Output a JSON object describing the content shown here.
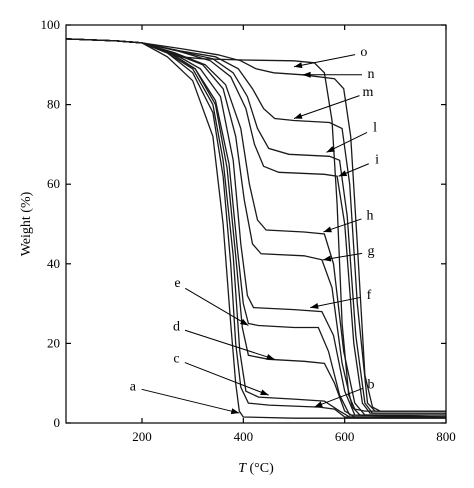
{
  "chart_data": {
    "type": "line",
    "title": "",
    "xlabel_italic": "T",
    "xlabel_rest": " (°C)",
    "ylabel": "Weight (%)",
    "xlim": [
      50,
      800
    ],
    "ylim": [
      0,
      100
    ],
    "xticks": [
      200,
      400,
      600,
      800
    ],
    "yticks": [
      0,
      20,
      40,
      60,
      80,
      100
    ],
    "grid": false,
    "series": [
      {
        "name": "a",
        "label": {
          "text": "a",
          "x": 182,
          "y": 9
        },
        "arrow_to": {
          "x": 392,
          "y": 2.5
        },
        "points": [
          [
            50,
            96.5
          ],
          [
            150,
            96
          ],
          [
            200,
            95.5
          ],
          [
            250,
            92
          ],
          [
            300,
            86
          ],
          [
            340,
            72
          ],
          [
            360,
            50
          ],
          [
            375,
            25
          ],
          [
            385,
            10
          ],
          [
            392,
            3
          ],
          [
            400,
            1.5
          ],
          [
            500,
            1.2
          ],
          [
            800,
            1.2
          ]
        ]
      },
      {
        "name": "b",
        "label": {
          "text": "b",
          "x": 652,
          "y": 9.5
        },
        "arrow_to": {
          "x": 540,
          "y": 4
        },
        "points": [
          [
            50,
            96.5
          ],
          [
            150,
            96
          ],
          [
            200,
            95.5
          ],
          [
            250,
            93
          ],
          [
            300,
            88
          ],
          [
            340,
            78
          ],
          [
            360,
            62
          ],
          [
            375,
            40
          ],
          [
            385,
            20
          ],
          [
            395,
            9
          ],
          [
            410,
            5
          ],
          [
            450,
            4.5
          ],
          [
            550,
            4
          ],
          [
            580,
            3.5
          ],
          [
            600,
            1.5
          ],
          [
            800,
            1.5
          ]
        ]
      },
      {
        "name": "c",
        "label": {
          "text": "c",
          "x": 268,
          "y": 16
        },
        "arrow_to": {
          "x": 450,
          "y": 7
        },
        "points": [
          [
            50,
            96.5
          ],
          [
            150,
            96
          ],
          [
            200,
            95.5
          ],
          [
            250,
            93
          ],
          [
            300,
            89
          ],
          [
            340,
            80
          ],
          [
            360,
            66
          ],
          [
            380,
            42
          ],
          [
            393,
            18
          ],
          [
            405,
            8
          ],
          [
            430,
            6.5
          ],
          [
            500,
            6
          ],
          [
            560,
            5.5
          ],
          [
            590,
            3
          ],
          [
            610,
            1.5
          ],
          [
            800,
            1.5
          ]
        ]
      },
      {
        "name": "d",
        "label": {
          "text": "d",
          "x": 268,
          "y": 24
        },
        "arrow_to": {
          "x": 462,
          "y": 16
        },
        "points": [
          [
            50,
            96.5
          ],
          [
            150,
            96
          ],
          [
            200,
            95.5
          ],
          [
            255,
            93
          ],
          [
            305,
            89
          ],
          [
            345,
            80
          ],
          [
            368,
            64
          ],
          [
            385,
            42
          ],
          [
            398,
            24
          ],
          [
            410,
            17
          ],
          [
            450,
            16
          ],
          [
            520,
            15.5
          ],
          [
            560,
            15
          ],
          [
            580,
            10
          ],
          [
            600,
            3
          ],
          [
            620,
            1.5
          ],
          [
            800,
            1.5
          ]
        ]
      },
      {
        "name": "e",
        "label": {
          "text": "e",
          "x": 270,
          "y": 35
        },
        "arrow_to": {
          "x": 410,
          "y": 24.5
        },
        "points": [
          [
            50,
            96.5
          ],
          [
            150,
            96
          ],
          [
            200,
            95.5
          ],
          [
            255,
            93
          ],
          [
            305,
            89
          ],
          [
            345,
            81
          ],
          [
            372,
            65
          ],
          [
            388,
            44
          ],
          [
            400,
            30
          ],
          [
            410,
            25
          ],
          [
            430,
            24.5
          ],
          [
            500,
            24
          ],
          [
            548,
            24
          ],
          [
            568,
            18
          ],
          [
            590,
            7
          ],
          [
            610,
            2
          ],
          [
            800,
            1.5
          ]
        ]
      },
      {
        "name": "f",
        "label": {
          "text": "f",
          "x": 648,
          "y": 32
        },
        "arrow_to": {
          "x": 532,
          "y": 29
        },
        "points": [
          [
            50,
            96.5
          ],
          [
            150,
            96
          ],
          [
            200,
            95.5
          ],
          [
            260,
            93
          ],
          [
            315,
            89
          ],
          [
            355,
            82
          ],
          [
            380,
            66
          ],
          [
            395,
            45
          ],
          [
            408,
            32
          ],
          [
            420,
            29
          ],
          [
            500,
            28.5
          ],
          [
            555,
            28
          ],
          [
            578,
            22
          ],
          [
            600,
            8
          ],
          [
            620,
            2
          ],
          [
            800,
            1.5
          ]
        ]
      },
      {
        "name": "g",
        "label": {
          "text": "g",
          "x": 652,
          "y": 43
        },
        "arrow_to": {
          "x": 557,
          "y": 41
        },
        "points": [
          [
            50,
            96.5
          ],
          [
            150,
            96
          ],
          [
            200,
            95.5
          ],
          [
            260,
            93
          ],
          [
            320,
            90
          ],
          [
            360,
            84
          ],
          [
            385,
            72
          ],
          [
            402,
            56
          ],
          [
            418,
            45
          ],
          [
            435,
            42.5
          ],
          [
            520,
            42
          ],
          [
            555,
            41
          ],
          [
            575,
            34
          ],
          [
            595,
            15
          ],
          [
            615,
            4
          ],
          [
            630,
            2
          ],
          [
            800,
            2
          ]
        ]
      },
      {
        "name": "h",
        "label": {
          "text": "h",
          "x": 650,
          "y": 52
        },
        "arrow_to": {
          "x": 558,
          "y": 48
        },
        "points": [
          [
            50,
            96.5
          ],
          [
            150,
            96
          ],
          [
            200,
            95.5
          ],
          [
            265,
            93
          ],
          [
            325,
            90
          ],
          [
            365,
            85
          ],
          [
            395,
            74
          ],
          [
            412,
            60
          ],
          [
            428,
            51
          ],
          [
            445,
            48.5
          ],
          [
            520,
            48
          ],
          [
            560,
            47.5
          ],
          [
            578,
            40
          ],
          [
            598,
            18
          ],
          [
            620,
            5
          ],
          [
            640,
            2
          ],
          [
            800,
            2
          ]
        ]
      },
      {
        "name": "i",
        "label": {
          "text": "i",
          "x": 664,
          "y": 66
        },
        "arrow_to": {
          "x": 588,
          "y": 62
        },
        "points": [
          [
            50,
            96.5
          ],
          [
            150,
            96
          ],
          [
            200,
            95.5
          ],
          [
            270,
            93.5
          ],
          [
            335,
            91
          ],
          [
            375,
            87
          ],
          [
            405,
            79
          ],
          [
            422,
            70
          ],
          [
            440,
            64.5
          ],
          [
            470,
            63
          ],
          [
            560,
            62.5
          ],
          [
            585,
            62
          ],
          [
            600,
            50
          ],
          [
            618,
            20
          ],
          [
            635,
            5
          ],
          [
            650,
            2.5
          ],
          [
            800,
            2.5
          ]
        ]
      },
      {
        "name": "l",
        "label": {
          "text": "l",
          "x": 660,
          "y": 74
        },
        "arrow_to": {
          "x": 564,
          "y": 68
        },
        "points": [
          [
            50,
            96.5
          ],
          [
            150,
            96
          ],
          [
            200,
            95.5
          ],
          [
            270,
            93.5
          ],
          [
            340,
            91.5
          ],
          [
            380,
            88
          ],
          [
            408,
            82
          ],
          [
            428,
            74
          ],
          [
            450,
            69
          ],
          [
            490,
            67.5
          ],
          [
            570,
            67
          ],
          [
            590,
            66
          ],
          [
            605,
            52
          ],
          [
            622,
            22
          ],
          [
            640,
            5
          ],
          [
            655,
            2.5
          ],
          [
            800,
            2.5
          ]
        ]
      },
      {
        "name": "m",
        "label": {
          "text": "m",
          "x": 646,
          "y": 83
        },
        "arrow_to": {
          "x": 500,
          "y": 76.5
        },
        "points": [
          [
            50,
            96.5
          ],
          [
            150,
            96
          ],
          [
            200,
            95.5
          ],
          [
            275,
            93.5
          ],
          [
            345,
            92
          ],
          [
            390,
            89
          ],
          [
            418,
            84
          ],
          [
            440,
            79
          ],
          [
            462,
            76.5
          ],
          [
            500,
            76
          ],
          [
            570,
            75.5
          ],
          [
            595,
            74
          ],
          [
            610,
            60
          ],
          [
            625,
            30
          ],
          [
            645,
            5
          ],
          [
            660,
            3
          ],
          [
            800,
            3
          ]
        ]
      },
      {
        "name": "n",
        "label": {
          "text": "n",
          "x": 652,
          "y": 87.5
        },
        "arrow_to": {
          "x": 517,
          "y": 87.5
        },
        "points": [
          [
            50,
            96.5
          ],
          [
            150,
            96
          ],
          [
            200,
            95.5
          ],
          [
            280,
            94
          ],
          [
            350,
            92.5
          ],
          [
            395,
            91
          ],
          [
            425,
            89
          ],
          [
            460,
            88
          ],
          [
            517,
            87.5
          ],
          [
            580,
            86.5
          ],
          [
            598,
            84
          ],
          [
            612,
            72
          ],
          [
            625,
            45
          ],
          [
            640,
            12
          ],
          [
            655,
            4
          ],
          [
            670,
            3
          ],
          [
            800,
            3
          ]
        ]
      },
      {
        "name": "o",
        "label": {
          "text": "o",
          "x": 638,
          "y": 93
        },
        "arrow_to": {
          "x": 500,
          "y": 89.5
        },
        "points": [
          [
            50,
            96.5
          ],
          [
            150,
            96
          ],
          [
            200,
            95.5
          ],
          [
            250,
            93
          ],
          [
            275,
            92
          ],
          [
            320,
            91.5
          ],
          [
            400,
            91.2
          ],
          [
            500,
            91
          ],
          [
            540,
            90.5
          ],
          [
            560,
            88
          ],
          [
            575,
            76
          ],
          [
            585,
            55
          ],
          [
            595,
            25
          ],
          [
            608,
            7
          ],
          [
            620,
            3.5
          ],
          [
            640,
            3
          ],
          [
            800,
            3
          ]
        ]
      }
    ]
  }
}
